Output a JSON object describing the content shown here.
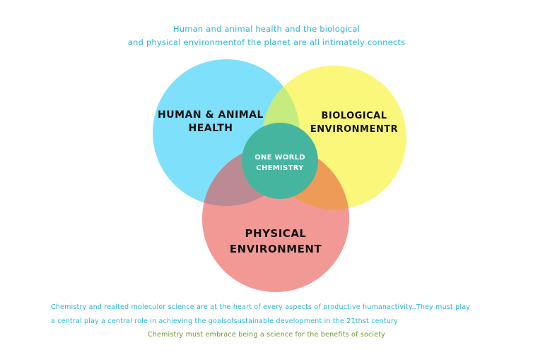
{
  "header": {
    "line1": "Human and animal health and the biological",
    "line2": "and physical environmentof the planet are all intimately connects"
  },
  "diagram": {
    "circles": [
      {
        "label_line1": "HUMAN & ANIMAL",
        "label_line2": "HEALTH",
        "color": "#7fe0fb"
      },
      {
        "label_line1": "BIOLOGICAL",
        "label_line2": "ENVIRONMENTR",
        "color": "#fbf77b"
      },
      {
        "label_line1": "PHYSICAL",
        "label_line2": "ENVIRONMENT",
        "color": "#f29996"
      }
    ],
    "overlap_colors": {
      "human_biological": "#c6ec80",
      "human_physical": "#bc8a93",
      "biological_physical": "#ef9b58"
    },
    "center": {
      "label_line1": "ONE WORLD",
      "label_line2": "CHEMISTRY",
      "color": "#46b59f"
    }
  },
  "footer": {
    "line1": "Chemistry and realted moleculor science are at the heart of every aspects of productive  humanactivity..They must play",
    "line2": "a central play a central role in achieving the goalsofsustainable development in the 21thst century",
    "line3": "Chemistry must embrace being a science for the benefits of society"
  }
}
